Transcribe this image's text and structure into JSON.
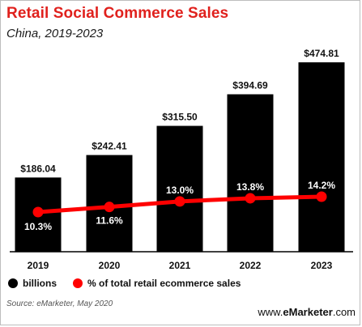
{
  "header": {
    "title": "Retail Social Commerce Sales",
    "subtitle": "China, 2019-2023"
  },
  "chart_data": {
    "type": "bar",
    "categories": [
      "2019",
      "2020",
      "2021",
      "2022",
      "2023"
    ],
    "series": [
      {
        "name": "billions",
        "type": "bar",
        "values": [
          186.04,
          242.41,
          315.5,
          394.69,
          474.81
        ],
        "labels": [
          "$186.04",
          "$242.41",
          "$315.50",
          "$394.69",
          "$474.81"
        ],
        "color": "#000000"
      },
      {
        "name": "% of total retail ecommerce sales",
        "type": "line",
        "values": [
          10.3,
          11.6,
          13.0,
          13.8,
          14.2
        ],
        "labels": [
          "10.3%",
          "11.6%",
          "13.0%",
          "13.8%",
          "14.2%"
        ],
        "color": "#ff0000"
      }
    ],
    "legend_position": "bottom-left",
    "grid": false
  },
  "legend": {
    "bars_label": "billions",
    "line_label": "% of total retail ecommerce sales"
  },
  "footer": {
    "source": "Source: eMarketer, May 2020",
    "logo_www": "www.",
    "logo_name": "eMarketer",
    "logo_com": ".com"
  }
}
